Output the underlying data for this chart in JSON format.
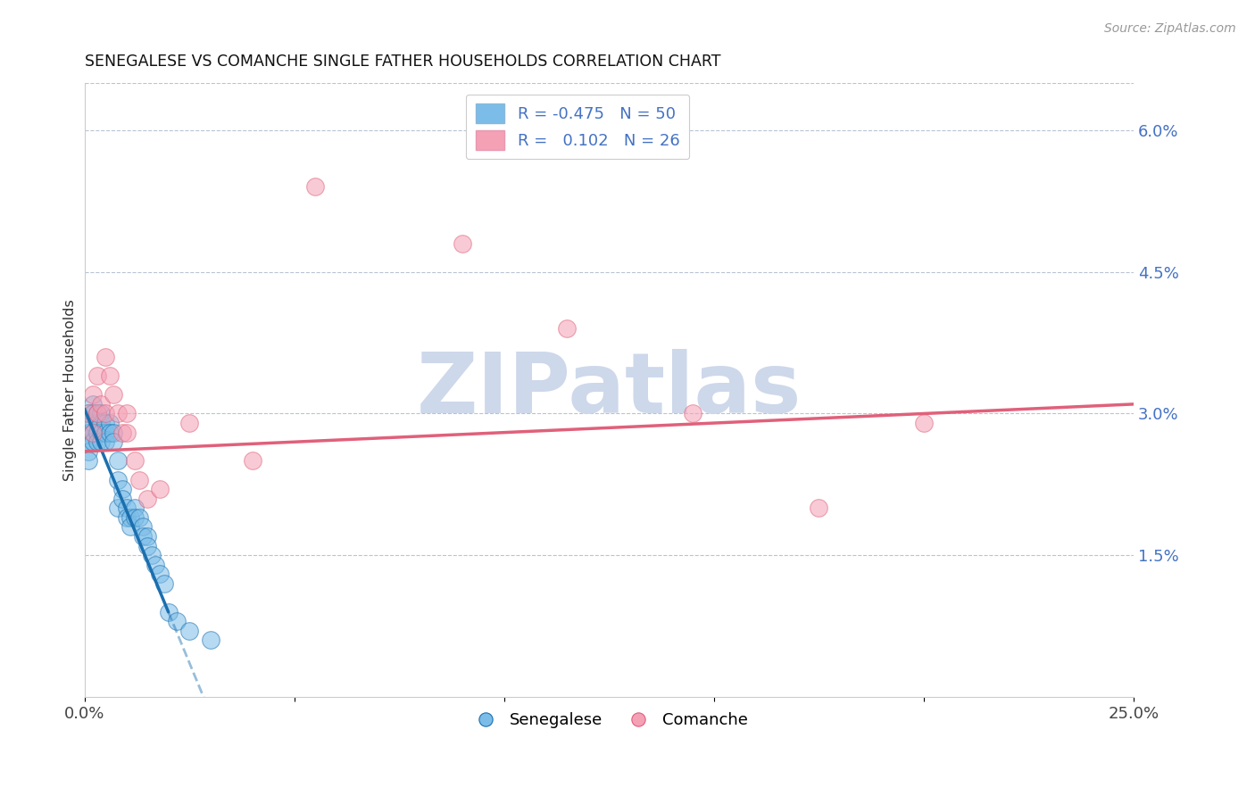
{
  "title": "SENEGALESE VS COMANCHE SINGLE FATHER HOUSEHOLDS CORRELATION CHART",
  "source": "Source: ZipAtlas.com",
  "ylabel": "Single Father Households",
  "xlim": [
    0.0,
    0.25
  ],
  "ylim": [
    0.0,
    0.065
  ],
  "right_yticks": [
    0.015,
    0.03,
    0.045,
    0.06
  ],
  "right_yticklabels": [
    "1.5%",
    "3.0%",
    "4.5%",
    "6.0%"
  ],
  "legend_label1": "Senegalese",
  "legend_label2": "Comanche",
  "legend_R1": "-0.475",
  "legend_N1": "50",
  "legend_R2": " 0.102",
  "legend_N2": "26",
  "color_blue": "#7bbde8",
  "color_pink": "#f4a0b5",
  "line_blue": "#1a6faf",
  "line_pink": "#e0607a",
  "watermark": "ZIPatlas",
  "watermark_color": "#cdd8ea",
  "sen_x": [
    0.001,
    0.001,
    0.001,
    0.001,
    0.001,
    0.001,
    0.002,
    0.002,
    0.002,
    0.002,
    0.002,
    0.003,
    0.003,
    0.003,
    0.003,
    0.004,
    0.004,
    0.004,
    0.004,
    0.005,
    0.005,
    0.005,
    0.006,
    0.006,
    0.007,
    0.007,
    0.008,
    0.008,
    0.008,
    0.009,
    0.009,
    0.01,
    0.01,
    0.011,
    0.011,
    0.012,
    0.012,
    0.013,
    0.014,
    0.014,
    0.015,
    0.015,
    0.016,
    0.017,
    0.018,
    0.019,
    0.02,
    0.022,
    0.025,
    0.03
  ],
  "sen_y": [
    0.03,
    0.029,
    0.028,
    0.027,
    0.026,
    0.025,
    0.031,
    0.03,
    0.029,
    0.028,
    0.027,
    0.03,
    0.029,
    0.028,
    0.027,
    0.03,
    0.029,
    0.028,
    0.027,
    0.029,
    0.028,
    0.027,
    0.029,
    0.028,
    0.028,
    0.027,
    0.025,
    0.023,
    0.02,
    0.022,
    0.021,
    0.02,
    0.019,
    0.019,
    0.018,
    0.02,
    0.019,
    0.019,
    0.018,
    0.017,
    0.017,
    0.016,
    0.015,
    0.014,
    0.013,
    0.012,
    0.009,
    0.008,
    0.007,
    0.006
  ],
  "com_x": [
    0.001,
    0.002,
    0.002,
    0.003,
    0.003,
    0.004,
    0.005,
    0.005,
    0.006,
    0.007,
    0.008,
    0.009,
    0.01,
    0.01,
    0.012,
    0.013,
    0.015,
    0.018,
    0.025,
    0.04,
    0.055,
    0.09,
    0.115,
    0.145,
    0.175,
    0.2
  ],
  "com_y": [
    0.03,
    0.032,
    0.028,
    0.034,
    0.03,
    0.031,
    0.036,
    0.03,
    0.034,
    0.032,
    0.03,
    0.028,
    0.03,
    0.028,
    0.025,
    0.023,
    0.021,
    0.022,
    0.029,
    0.025,
    0.054,
    0.048,
    0.039,
    0.03,
    0.02,
    0.029
  ],
  "blue_line_x0": 0.0,
  "blue_line_y0": 0.0305,
  "blue_line_xsolid": 0.02,
  "blue_line_ysolid": 0.009,
  "blue_line_xdash": 0.25,
  "blue_line_ydash": -0.15,
  "pink_line_x0": 0.0,
  "pink_line_y0": 0.026,
  "pink_line_x1": 0.25,
  "pink_line_y1": 0.031
}
